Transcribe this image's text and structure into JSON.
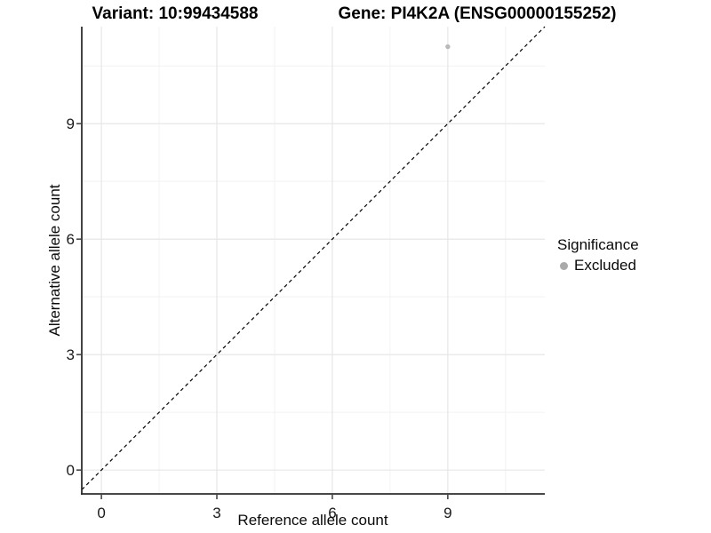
{
  "chart_data": {
    "type": "scatter",
    "title_left": "Variant: 10:99434588",
    "title_right": "Gene: PI4K2A (ENSG00000155252)",
    "xlabel": "Reference allele count",
    "ylabel": "Alternative allele count",
    "xlim": [
      -0.51,
      11.52
    ],
    "ylim": [
      -0.62,
      11.52
    ],
    "x_ticks": [
      0,
      3,
      6,
      9
    ],
    "y_ticks": [
      0,
      3,
      6,
      9
    ],
    "x_minor_ticks": [
      1.5,
      4.5,
      7.5,
      10.5
    ],
    "y_minor_ticks": [
      1.5,
      4.5,
      7.5,
      10.5
    ],
    "grid": "major and minor gridlines, light gray on white panel",
    "identity_line": {
      "style": "dashed",
      "slope": 1,
      "intercept": 0,
      "color": "#000000"
    },
    "series": [
      {
        "name": "Excluded",
        "marker": "circle",
        "color": "#b9b9b9",
        "points": [
          {
            "x": 9,
            "y": 11
          }
        ]
      }
    ],
    "legend_position": "right"
  },
  "legend": {
    "title": "Significance",
    "items": [
      {
        "label": "Excluded",
        "marker": "circle",
        "color": "#aaaaaa"
      }
    ]
  },
  "colors": {
    "axis_line": "#2e2e2e",
    "tick_label": "#1a1a1a",
    "major_grid": "#e4e4e4",
    "minor_grid": "#f2f2f2",
    "panel_background": "#ffffff"
  }
}
